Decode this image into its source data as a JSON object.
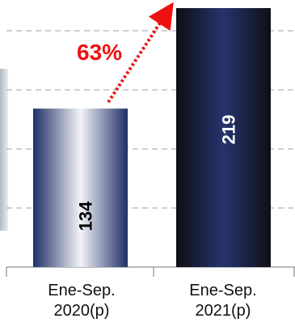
{
  "chart_data": {
    "type": "bar",
    "categories": [
      "Ene-Sep.\n2020(p)",
      "Ene-Sep.\n2021(p)"
    ],
    "values": [
      134,
      219
    ],
    "data_labels": [
      "134",
      "219"
    ],
    "annotation": "63%",
    "title": "",
    "xlabel": "",
    "ylabel": "",
    "ylim": [
      0,
      219
    ],
    "grid": true,
    "legend": "none",
    "colors": {
      "bar_2020_edge": "#1f2f66",
      "bar_2020_center": "#f2f4f8",
      "bar_2021_edge": "#0e0f16",
      "bar_2021_center": "#25346e",
      "annotation": "#ee1111",
      "grid": "#a0a0a0"
    }
  }
}
